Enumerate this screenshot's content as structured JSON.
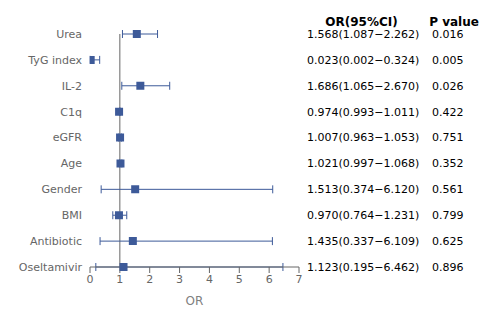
{
  "chart_data": {
    "type": "forest",
    "x_label": "OR",
    "categories": [
      "Urea",
      "TyG index",
      "IL-2",
      "C1q",
      "eGFR",
      "Age",
      "Gender",
      "BMI",
      "Antibiotic",
      "Oseltamivir"
    ],
    "values": [
      1.568,
      0.023,
      1.686,
      0.974,
      1.007,
      1.021,
      1.513,
      0.97,
      1.435,
      1.123
    ],
    "ci_lower": [
      1.087,
      0.002,
      1.065,
      0.993,
      0.963,
      0.997,
      0.374,
      0.764,
      0.337,
      0.195
    ],
    "ci_upper": [
      2.262,
      0.324,
      2.67,
      1.011,
      1.053,
      1.068,
      6.12,
      1.231,
      6.109,
      6.462
    ],
    "columns": [
      {
        "header": "OR(95%CI)",
        "labels": [
          "1.568(1.087−2.262)",
          "0.023(0.002−0.324)",
          "1.686(1.065−2.670)",
          "0.974(0.993−1.011)",
          "1.007(0.963−1.053)",
          "1.021(0.997−1.068)",
          "1.513(0.374−6.120)",
          "0.970(0.764−1.231)",
          "1.435(0.337−6.109)",
          "1.123(0.195−6.462)"
        ]
      },
      {
        "header": "P value",
        "labels": [
          "0.016",
          "0.005",
          "0.026",
          "0.422",
          "0.751",
          "0.352",
          "0.561",
          "0.799",
          "0.625",
          "0.896"
        ]
      }
    ],
    "reference_line": {
      "x": 1,
      "color": "#666666"
    },
    "color": "#3d5a99",
    "marker": "square",
    "xlim": [
      0,
      7
    ],
    "xticks": [
      0,
      1,
      2,
      3,
      4,
      5,
      6,
      7
    ],
    "grid": false
  }
}
